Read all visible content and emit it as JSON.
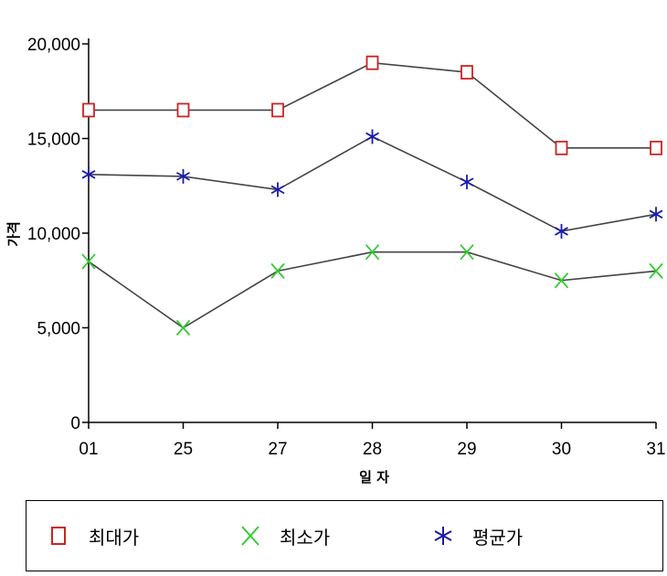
{
  "chart_data": {
    "type": "line",
    "categories": [
      "01",
      "25",
      "27",
      "28",
      "29",
      "30",
      "31"
    ],
    "series": [
      {
        "name": "최대가",
        "marker": "square",
        "color": "#cc2222",
        "values": [
          16500,
          16500,
          16500,
          19000,
          18500,
          14500,
          14500
        ]
      },
      {
        "name": "최소가",
        "marker": "x",
        "color": "#33cc33",
        "values": [
          8500,
          5000,
          8000,
          9000,
          9000,
          7500,
          8000
        ]
      },
      {
        "name": "평균가",
        "marker": "asterisk",
        "color": "#1a1aaa",
        "values": [
          13100,
          13000,
          12300,
          15100,
          12700,
          10100,
          11000
        ]
      }
    ],
    "xlabel": "일 자",
    "ylabel": "가격",
    "ylim": [
      0,
      20000
    ],
    "yticks": [
      "0",
      "5,000",
      "10,000",
      "15,000",
      "20,000"
    ],
    "line_color": "#444444",
    "grid": false,
    "legend_position": "bottom"
  }
}
